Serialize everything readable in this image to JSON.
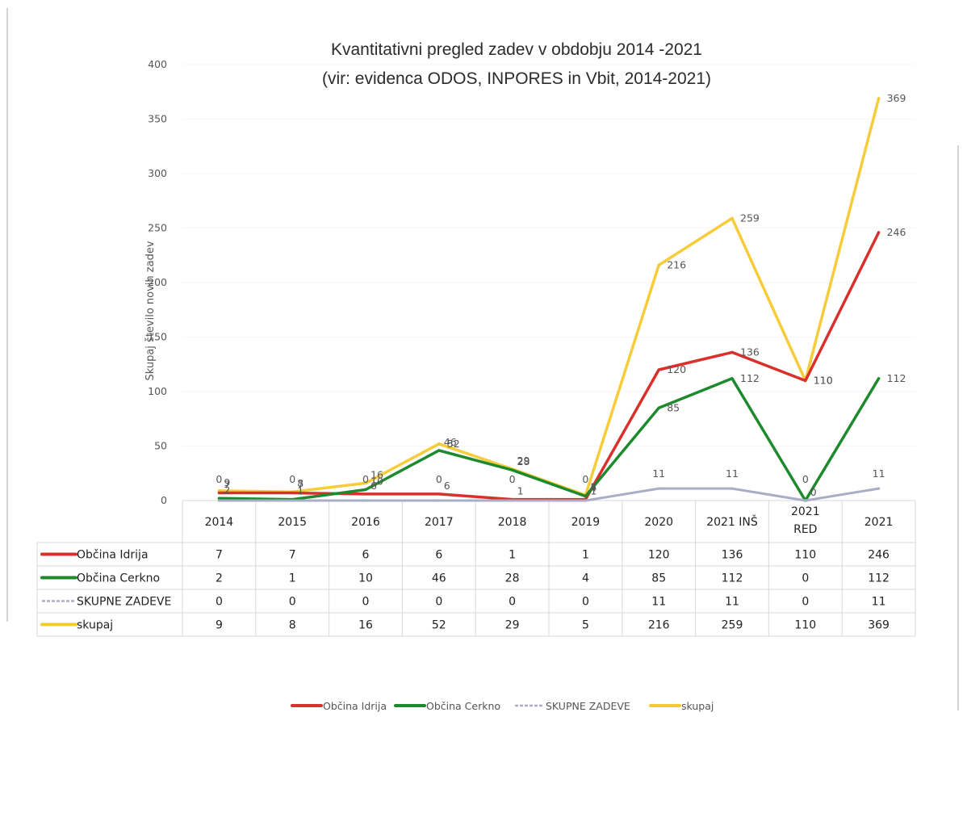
{
  "chart_data": {
    "type": "line",
    "title": "Kvantitativni pregled zadev v obdobju 2014 -2021",
    "subtitle": "(vir: evidenca ODOS, INPORES in Vbit, 2014-2021)",
    "xlabel": "",
    "ylabel": "Skupaj število novih zadev",
    "ylim": [
      0,
      400
    ],
    "yticks": [
      "0",
      "50",
      "100",
      "150",
      "200",
      "250",
      "300",
      "350",
      "400"
    ],
    "categories": [
      {
        "line1": "2014",
        "line2": ""
      },
      {
        "line1": "2015",
        "line2": ""
      },
      {
        "line1": "2016",
        "line2": ""
      },
      {
        "line1": "2017",
        "line2": ""
      },
      {
        "line1": "2018",
        "line2": ""
      },
      {
        "line1": "2019",
        "line2": ""
      },
      {
        "line1": "2020",
        "line2": ""
      },
      {
        "line1": "2021 INŠ",
        "line2": ""
      },
      {
        "line1": "2021",
        "line2": "RED"
      },
      {
        "line1": "2021",
        "line2": ""
      }
    ],
    "series": [
      {
        "name": "Občina Idrija",
        "color": "#d9302c",
        "values": [
          7,
          7,
          6,
          6,
          1,
          1,
          120,
          136,
          110,
          246
        ]
      },
      {
        "name": "Občina Cerkno",
        "color": "#1e8a2e",
        "values": [
          2,
          1,
          10,
          46,
          28,
          4,
          85,
          112,
          0,
          112
        ]
      },
      {
        "name": "SKUPNE ZADEVE",
        "color": "#a9adc6",
        "values": [
          0,
          0,
          0,
          0,
          0,
          0,
          11,
          11,
          0,
          11
        ]
      },
      {
        "name": "skupaj",
        "color": "#f5c930",
        "values": [
          9,
          8,
          16,
          52,
          29,
          5,
          216,
          259,
          110,
          369
        ]
      }
    ],
    "legend_position": "bottom",
    "data_table": true,
    "grid": false
  }
}
